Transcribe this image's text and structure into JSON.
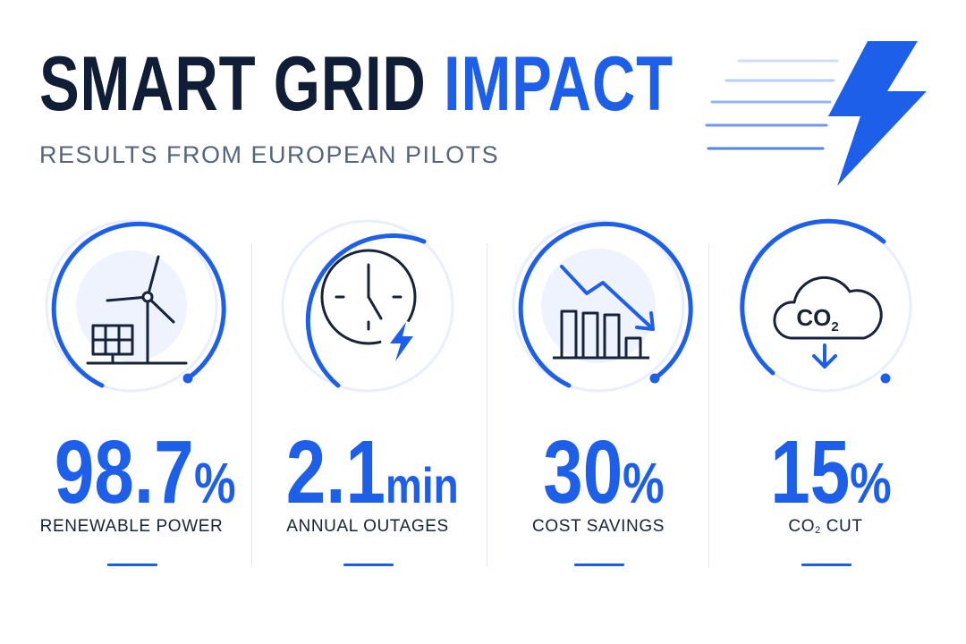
{
  "header": {
    "title_dark": "SMART GRID",
    "title_accent": "IMPACT",
    "subtitle": "RESULTS FROM EUROPEAN PILOTS"
  },
  "colors": {
    "accent": "#1d5fe8",
    "text_dark": "#0f1d36",
    "text_muted": "#56657b",
    "ring_track": "#e8eefc"
  },
  "stats": [
    {
      "icon": "wind-turbine-solar-panel-icon",
      "value": "98.7",
      "unit": "%",
      "label": "RENEWABLE POWER"
    },
    {
      "icon": "clock-lightning-icon",
      "value": "2.1",
      "unit": "min",
      "label": "ANNUAL OUTAGES"
    },
    {
      "icon": "declining-bar-chart-icon",
      "value": "30",
      "unit": "%",
      "label": "COST SAVINGS"
    },
    {
      "icon": "co2-cloud-down-icon",
      "value": "15",
      "unit": "%",
      "label_main": "CO",
      "label_sub": "2",
      "label_rest": " CUT",
      "icon_text": "CO",
      "icon_text_sub": "2"
    }
  ]
}
